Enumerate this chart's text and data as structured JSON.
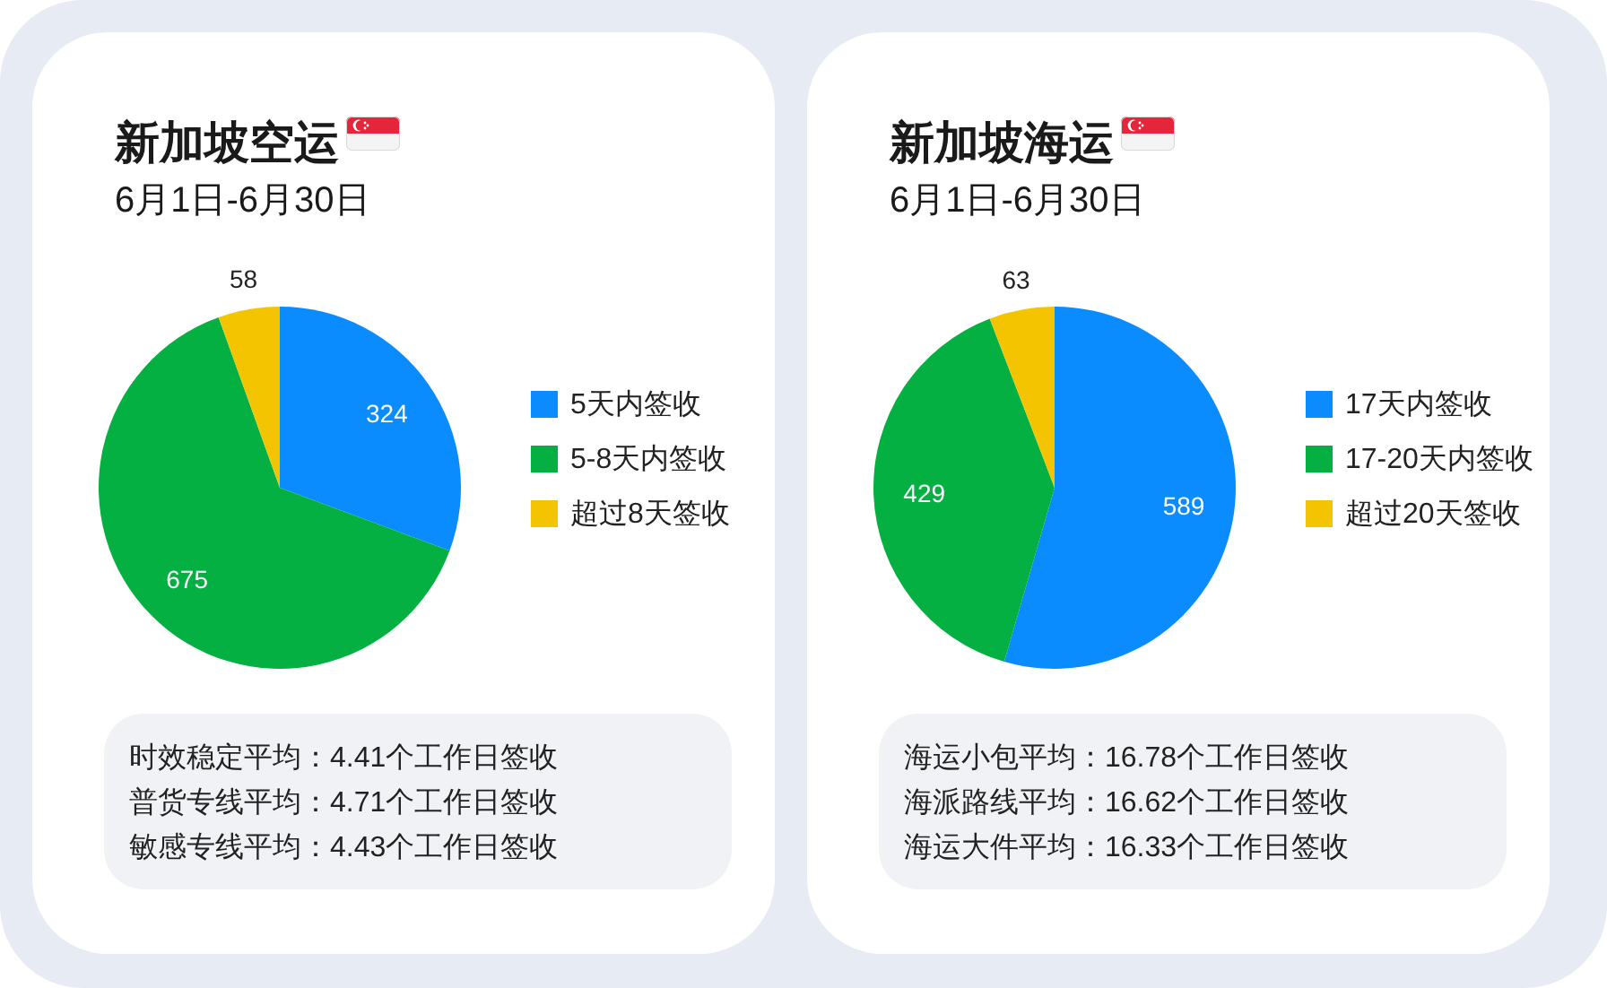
{
  "chart_data": [
    {
      "type": "pie",
      "title": "新加坡空运",
      "subtitle": "6月1日-6月30日",
      "categories": [
        "5天内签收",
        "5-8天内签收",
        "超过8天签收"
      ],
      "values": [
        324,
        675,
        58
      ],
      "colors": [
        "#0a8cff",
        "#03b041",
        "#f5c400"
      ],
      "data_labels": true,
      "legend": "right",
      "annotations": [
        "时效稳定平均：4.41个工作日签收",
        "普货专线平均：4.71个工作日签收",
        "敏感专线平均：4.43个工作日签收"
      ]
    },
    {
      "type": "pie",
      "title": "新加坡海运",
      "subtitle": "6月1日-6月30日",
      "categories": [
        "17天内签收",
        "17-20天内签收",
        "超过20天签收"
      ],
      "values": [
        589,
        429,
        63
      ],
      "colors": [
        "#0a8cff",
        "#03b041",
        "#f5c400"
      ],
      "data_labels": true,
      "legend": "right",
      "annotations": [
        "海运小包平均：16.78个工作日签收",
        "海派路线平均：16.62个工作日签收",
        "海运大件平均：16.33个工作日签收"
      ]
    }
  ]
}
